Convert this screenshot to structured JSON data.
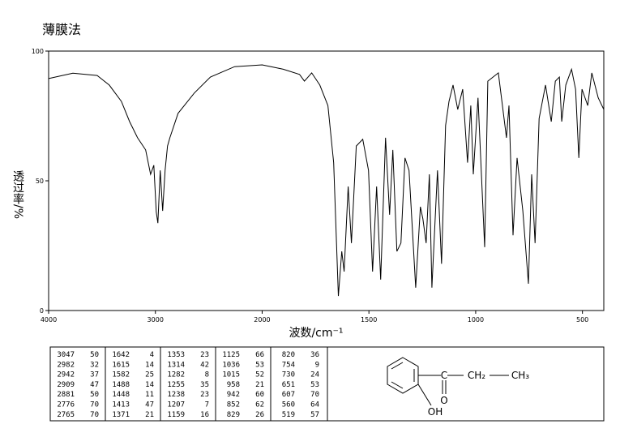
{
  "chart_data": {
    "type": "line",
    "title": "薄膜法",
    "xlabel": "波数/cm⁻¹",
    "ylabel": "透过率/%",
    "xlim": [
      4000,
      400
    ],
    "xbreak": 2000,
    "ylim": [
      0,
      100
    ],
    "xticks": [
      4000,
      3000,
      2000,
      1500,
      1000,
      500
    ],
    "yticks": [
      0,
      50,
      100
    ],
    "color": "#000000",
    "x": [
      4000,
      3773,
      3545,
      3432,
      3318,
      3242,
      3167,
      3091,
      3045,
      3015,
      2992,
      2977,
      2955,
      2932,
      2909,
      2886,
      2864,
      2788,
      2636,
      2485,
      2258,
      2000,
      1901,
      1825,
      1802,
      1768,
      1730,
      1692,
      1665,
      1643,
      1627,
      1616,
      1597,
      1582,
      1559,
      1529,
      1502,
      1483,
      1464,
      1445,
      1422,
      1403,
      1388,
      1369,
      1350,
      1331,
      1312,
      1281,
      1259,
      1247,
      1232,
      1217,
      1205,
      1179,
      1160,
      1141,
      1125,
      1106,
      1084,
      1061,
      1038,
      1023,
      1011,
      989,
      958,
      943,
      894,
      856,
      844,
      825,
      806,
      779,
      753,
      738,
      722,
      703,
      673,
      646,
      627,
      608,
      597,
      578,
      551,
      532,
      517,
      502,
      475,
      456,
      426,
      400
    ],
    "values": [
      89.4,
      91.5,
      90.6,
      86.9,
      80.6,
      72.8,
      66.6,
      61.9,
      52.5,
      56,
      38,
      33.7,
      54,
      38.4,
      54,
      63.4,
      66.6,
      76,
      83.8,
      90,
      94,
      94.7,
      93,
      91,
      88.4,
      91.6,
      86.9,
      79,
      57,
      5.6,
      22.8,
      15,
      47.8,
      26,
      63.4,
      66,
      54,
      15,
      47.8,
      11.9,
      66.6,
      36.9,
      61.9,
      22.8,
      26,
      58.8,
      54,
      8.8,
      40,
      35.3,
      26,
      52.5,
      8.8,
      54,
      18,
      71.3,
      80.6,
      86.9,
      77.5,
      85.3,
      57,
      79,
      52.5,
      82,
      24.4,
      88.4,
      91.6,
      66.6,
      79,
      29,
      58.8,
      38.4,
      10.3,
      52.5,
      26,
      74,
      86.9,
      72.8,
      88.4,
      90,
      72.8,
      86.9,
      93,
      85.3,
      58.8,
      85.3,
      79,
      91.6,
      82,
      77.5
    ]
  },
  "peak_table": [
    [
      [
        3047,
        50
      ],
      [
        2982,
        32
      ],
      [
        2942,
        37
      ],
      [
        2909,
        47
      ],
      [
        2881,
        50
      ],
      [
        2776,
        70
      ],
      [
        2765,
        70
      ]
    ],
    [
      [
        1642,
        4
      ],
      [
        1615,
        14
      ],
      [
        1582,
        25
      ],
      [
        1488,
        14
      ],
      [
        1448,
        11
      ],
      [
        1413,
        47
      ],
      [
        1371,
        21
      ]
    ],
    [
      [
        1353,
        23
      ],
      [
        1314,
        42
      ],
      [
        1282,
        8
      ],
      [
        1255,
        35
      ],
      [
        1238,
        23
      ],
      [
        1207,
        7
      ],
      [
        1159,
        16
      ]
    ],
    [
      [
        1125,
        66
      ],
      [
        1036,
        53
      ],
      [
        1015,
        52
      ],
      [
        958,
        21
      ],
      [
        942,
        60
      ],
      [
        852,
        62
      ],
      [
        829,
        26
      ]
    ],
    [
      [
        820,
        36
      ],
      [
        754,
        9
      ],
      [
        730,
        24
      ],
      [
        651,
        53
      ],
      [
        607,
        70
      ],
      [
        560,
        64
      ],
      [
        519,
        57
      ]
    ]
  ],
  "structure": {
    "carbonyl_c": "C",
    "oxygen": "O",
    "ch2": "CH₂",
    "ch3": "CH₃",
    "hydroxyl": "OH"
  }
}
